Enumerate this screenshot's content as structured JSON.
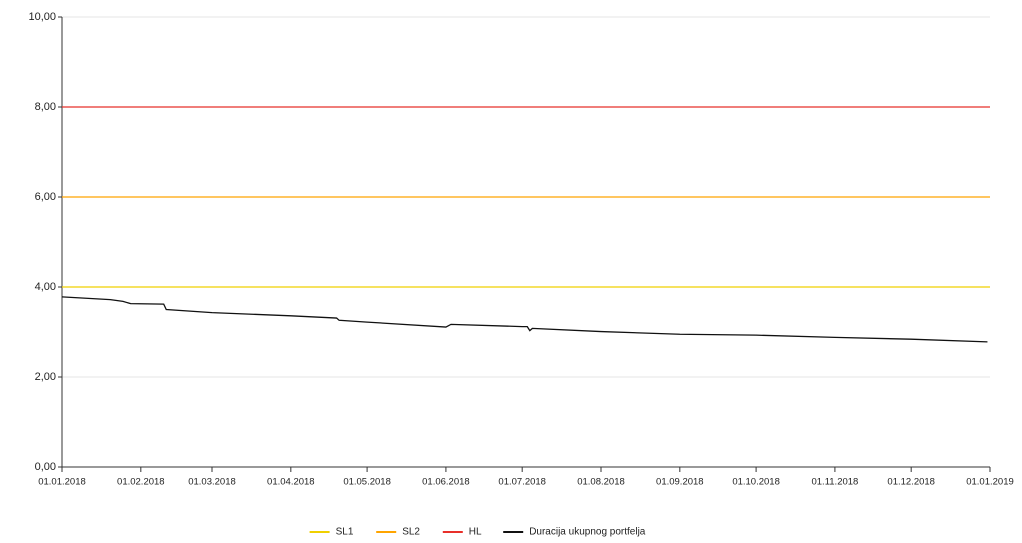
{
  "chart_data": {
    "type": "line",
    "xlim": [
      "01.01.2018",
      "01.01.2019"
    ],
    "xticks": [
      "01.01.2018",
      "01.02.2018",
      "01.03.2018",
      "01.04.2018",
      "01.05.2018",
      "01.06.2018",
      "01.07.2018",
      "01.08.2018",
      "01.09.2018",
      "01.10.2018",
      "01.11.2018",
      "01.12.2018",
      "01.01.2019"
    ],
    "ylim": [
      0,
      10
    ],
    "yticks": [
      {
        "value": 0,
        "label": "0,00"
      },
      {
        "value": 2,
        "label": "2,00"
      },
      {
        "value": 4,
        "label": "4,00"
      },
      {
        "value": 6,
        "label": "6,00"
      },
      {
        "value": 8,
        "label": "8,00"
      },
      {
        "value": 10,
        "label": "10,00"
      }
    ],
    "grid": true,
    "legend": "bottom",
    "series": [
      {
        "name": "SL1",
        "color": "#f0d000",
        "x": [
          "01.01.2018",
          "01.01.2019"
        ],
        "values": [
          4,
          4
        ]
      },
      {
        "name": "SL2",
        "color": "#ffa500",
        "x": [
          "01.01.2018",
          "01.01.2019"
        ],
        "values": [
          6,
          6
        ]
      },
      {
        "name": "HL",
        "color": "#e8302a",
        "x": [
          "01.01.2018",
          "01.01.2019"
        ],
        "values": [
          8,
          8
        ]
      },
      {
        "name": "Duracija ukupnog portfelja",
        "color": "#111111",
        "x": [
          "01.01.2018",
          "20.01.2018",
          "25.01.2018",
          "28.01.2018",
          "10.02.2018",
          "11.02.2018",
          "01.03.2018",
          "01.04.2018",
          "19.04.2018",
          "20.04.2018",
          "01.05.2018",
          "01.06.2018",
          "03.06.2018",
          "01.07.2018",
          "03.07.2018",
          "04.07.2018",
          "05.07.2018",
          "01.08.2018",
          "01.09.2018",
          "01.10.2018",
          "01.11.2018",
          "01.12.2018",
          "31.12.2018"
        ],
        "values": [
          3.78,
          3.72,
          3.68,
          3.63,
          3.62,
          3.5,
          3.43,
          3.36,
          3.31,
          3.26,
          3.22,
          3.11,
          3.17,
          3.12,
          3.12,
          3.03,
          3.08,
          3.01,
          2.95,
          2.93,
          2.88,
          2.84,
          2.78
        ]
      }
    ]
  }
}
